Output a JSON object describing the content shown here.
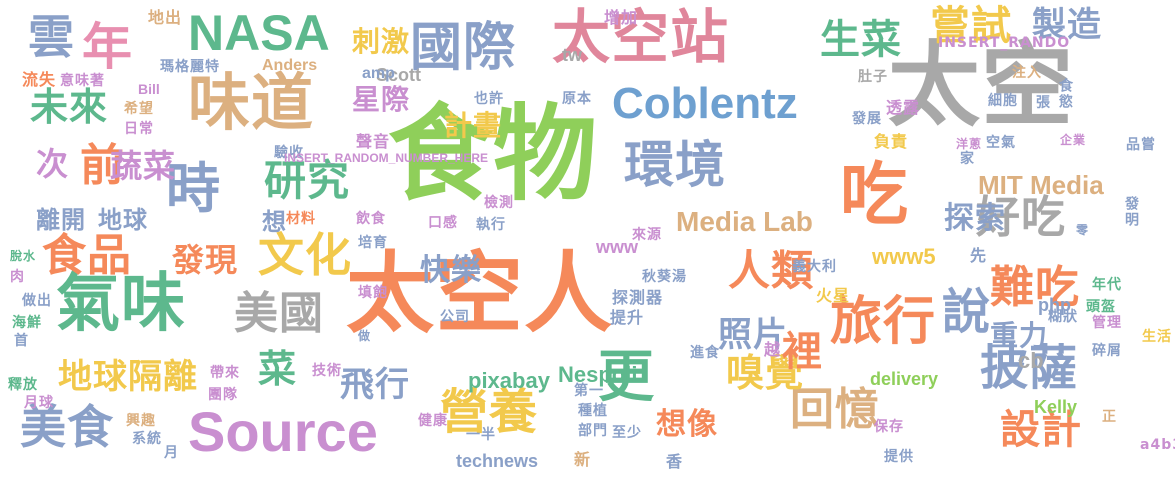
{
  "words": [
    {
      "text": "食物",
      "color": "#8fcf5a"
    },
    {
      "text": "太空",
      "color": "#a8a8a8"
    },
    {
      "text": "太空人",
      "color": "#f5895a"
    },
    {
      "text": "太空站",
      "color": "#e0869b"
    },
    {
      "text": "國際",
      "color": "#8aa0c8"
    },
    {
      "text": "氣味",
      "color": "#5db88d"
    },
    {
      "text": "味道",
      "color": "#dcb080"
    },
    {
      "text": "Source",
      "color": "#c98fd0"
    },
    {
      "text": "NASA",
      "color": "#5db88d"
    },
    {
      "text": "年",
      "color": "#e88fb0"
    },
    {
      "text": "Coblentz",
      "color": "#6ea0d0"
    },
    {
      "text": "吃",
      "color": "#f5895a"
    },
    {
      "text": "旅行",
      "color": "#f5895a"
    },
    {
      "text": "環境",
      "color": "#8aa0c8"
    },
    {
      "text": "時",
      "color": "#8aa0c8"
    },
    {
      "text": "美食",
      "color": "#8aa0c8"
    },
    {
      "text": "更",
      "color": "#5db88d"
    },
    {
      "text": "營養",
      "color": "#f2c94c"
    },
    {
      "text": "披薩",
      "color": "#8aa0c8"
    },
    {
      "text": "說",
      "color": "#8aa0c8"
    },
    {
      "text": "好吃",
      "color": "#a8a8a8"
    },
    {
      "text": "難吃",
      "color": "#f5895a"
    },
    {
      "text": "人類",
      "color": "#f5895a"
    },
    {
      "text": "文化",
      "color": "#f2c94c"
    },
    {
      "text": "研究",
      "color": "#5db88d"
    },
    {
      "text": "美國",
      "color": "#a8a8a8"
    },
    {
      "text": "食品",
      "color": "#f5895a"
    },
    {
      "text": "前",
      "color": "#f5895a"
    },
    {
      "text": "生菜",
      "color": "#5db88d"
    },
    {
      "text": "嘗試",
      "color": "#f2c94c"
    },
    {
      "text": "製造",
      "color": "#8aa0c8"
    },
    {
      "text": "雲",
      "color": "#8aa0c8"
    },
    {
      "text": "未來",
      "color": "#5db88d"
    },
    {
      "text": "次",
      "color": "#c98fd0"
    },
    {
      "text": "蔬菜",
      "color": "#c98fd0"
    },
    {
      "text": "回憶",
      "color": "#dcb080"
    },
    {
      "text": "嗅覺",
      "color": "#f2c94c"
    },
    {
      "text": "設計",
      "color": "#f5895a"
    },
    {
      "text": "飛行",
      "color": "#8aa0c8"
    },
    {
      "text": "地球隔離",
      "color": "#f2c94c"
    },
    {
      "text": "菜",
      "color": "#5db88d"
    },
    {
      "text": "想像",
      "color": "#f5895a"
    },
    {
      "text": "照片",
      "color": "#8aa0c8"
    },
    {
      "text": "發現",
      "color": "#f5895a"
    },
    {
      "text": "裡",
      "color": "#f5895a"
    },
    {
      "text": "MIT Media",
      "color": "#dcb080"
    },
    {
      "text": "Media Lab",
      "color": "#dcb080"
    },
    {
      "text": "探索",
      "color": "#8aa0c8"
    },
    {
      "text": "快樂",
      "color": "#8aa0c8"
    },
    {
      "text": "重力",
      "color": "#8aa0c8"
    },
    {
      "text": "刺激",
      "color": "#f2c94c"
    },
    {
      "text": "星際",
      "color": "#c98fd0"
    },
    {
      "text": "計畫",
      "color": "#f2c94c"
    },
    {
      "text": "離開",
      "color": "#8aa0c8"
    },
    {
      "text": "地球",
      "color": "#8aa0c8"
    },
    {
      "text": "想",
      "color": "#8aa0c8"
    },
    {
      "text": "www5",
      "color": "#f2c94c"
    },
    {
      "text": "www",
      "color": "#c98fd0"
    },
    {
      "text": "pixabay",
      "color": "#5db88d"
    },
    {
      "text": "Nespoli",
      "color": "#5db88d"
    },
    {
      "text": "technews",
      "color": "#8aa0c8"
    },
    {
      "text": "delivery",
      "color": "#8fcf5a"
    },
    {
      "text": "Scott",
      "color": "#a8a8a8"
    },
    {
      "text": "Anders",
      "color": "#dcb080"
    },
    {
      "text": "amp",
      "color": "#8aa0c8"
    },
    {
      "text": "tw",
      "color": "#a8a8a8"
    },
    {
      "text": "php",
      "color": "#8aa0c8"
    },
    {
      "text": "Kelly",
      "color": "#8fcf5a"
    },
    {
      "text": "cb",
      "color": "#a8a8a8"
    },
    {
      "text": "Bill",
      "color": "#c98fd0"
    },
    {
      "text": "瑪格麗特",
      "color": "#8aa0c8"
    },
    {
      "text": "希望",
      "color": "#dcb080"
    },
    {
      "text": "日常",
      "color": "#c98fd0"
    },
    {
      "text": "流失",
      "color": "#f5895a"
    },
    {
      "text": "意味著",
      "color": "#c98fd0"
    },
    {
      "text": "地出",
      "color": "#dcb080"
    },
    {
      "text": "增加",
      "color": "#c98fd0"
    },
    {
      "text": "聲音",
      "color": "#c98fd0"
    },
    {
      "text": "驗收",
      "color": "#8aa0c8"
    },
    {
      "text": "也許",
      "color": "#8aa0c8"
    },
    {
      "text": "原本",
      "color": "#8aa0c8"
    },
    {
      "text": "負責",
      "color": "#f2c94c"
    },
    {
      "text": "透露",
      "color": "#c98fd0"
    },
    {
      "text": "細胞",
      "color": "#8aa0c8"
    },
    {
      "text": "張",
      "color": "#8aa0c8"
    },
    {
      "text": "食慾",
      "color": "#8aa0c8"
    },
    {
      "text": "空氣",
      "color": "#8aa0c8"
    },
    {
      "text": "發展",
      "color": "#8aa0c8"
    },
    {
      "text": "家",
      "color": "#8aa0c8"
    },
    {
      "text": "洋蔥",
      "color": "#c98fd0"
    },
    {
      "text": "品嘗",
      "color": "#8aa0c8"
    },
    {
      "text": "注入",
      "color": "#dcb080"
    },
    {
      "text": "肚子",
      "color": "#a8a8a8"
    },
    {
      "text": "企業",
      "color": "#c98fd0"
    },
    {
      "text": "材料",
      "color": "#f5895a"
    },
    {
      "text": "飲食",
      "color": "#c98fd0"
    },
    {
      "text": "口感",
      "color": "#c98fd0"
    },
    {
      "text": "執行",
      "color": "#8aa0c8"
    },
    {
      "text": "檢測",
      "color": "#c98fd0"
    },
    {
      "text": "培育",
      "color": "#8aa0c8"
    },
    {
      "text": "來源",
      "color": "#c98fd0"
    },
    {
      "text": "義大利",
      "color": "#8aa0c8"
    },
    {
      "text": "火星",
      "color": "#f2c94c"
    },
    {
      "text": "先",
      "color": "#8aa0c8"
    },
    {
      "text": "零",
      "color": "#8aa0c8"
    },
    {
      "text": "發明",
      "color": "#8aa0c8"
    },
    {
      "text": "年代",
      "color": "#5db88d"
    },
    {
      "text": "頭盔",
      "color": "#5db88d"
    },
    {
      "text": "管理",
      "color": "#c98fd0"
    },
    {
      "text": "秋葵湯",
      "color": "#8aa0c8"
    },
    {
      "text": "探測器",
      "color": "#8aa0c8"
    },
    {
      "text": "提升",
      "color": "#8aa0c8"
    },
    {
      "text": "公司",
      "color": "#8aa0c8"
    },
    {
      "text": "填飽",
      "color": "#c98fd0"
    },
    {
      "text": "做",
      "color": "#8aa0c8"
    },
    {
      "text": "肉",
      "color": "#c98fd0"
    },
    {
      "text": "脫水",
      "color": "#5db88d"
    },
    {
      "text": "做出",
      "color": "#8aa0c8"
    },
    {
      "text": "海鮮",
      "color": "#5db88d"
    },
    {
      "text": "首",
      "color": "#8aa0c8"
    },
    {
      "text": "糊狀",
      "color": "#8aa0c8"
    },
    {
      "text": "碎屑",
      "color": "#8aa0c8"
    },
    {
      "text": "生活",
      "color": "#f2c94c"
    },
    {
      "text": "越",
      "color": "#c98fd0"
    },
    {
      "text": "進食",
      "color": "#8aa0c8"
    },
    {
      "text": "技術",
      "color": "#c98fd0"
    },
    {
      "text": "帶來",
      "color": "#c98fd0"
    },
    {
      "text": "團隊",
      "color": "#c98fd0"
    },
    {
      "text": "釋放",
      "color": "#5db88d"
    },
    {
      "text": "月球",
      "color": "#c98fd0"
    },
    {
      "text": "興趣",
      "color": "#dcb080"
    },
    {
      "text": "系統",
      "color": "#8aa0c8"
    },
    {
      "text": "健康",
      "color": "#c98fd0"
    },
    {
      "text": "第一",
      "color": "#8aa0c8"
    },
    {
      "text": "種植",
      "color": "#8aa0c8"
    },
    {
      "text": "部門",
      "color": "#8aa0c8"
    },
    {
      "text": "至少",
      "color": "#8aa0c8"
    },
    {
      "text": "一半",
      "color": "#8aa0c8"
    },
    {
      "text": "新",
      "color": "#dcb080"
    },
    {
      "text": "香",
      "color": "#8aa0c8"
    },
    {
      "text": "保存",
      "color": "#c98fd0"
    },
    {
      "text": "提供",
      "color": "#8aa0c8"
    },
    {
      "text": "正",
      "color": "#dcb080"
    },
    {
      "text": "a4b3f35b",
      "color": "#c98fd0"
    },
    {
      "text": "月",
      "color": "#8aa0c8"
    },
    {
      "text": "INSERT_RANDOM_NUMBER_HERE",
      "color": "#c98fd0"
    },
    {
      "text": "INSERT_RANDO",
      "color": "#c98fd0"
    }
  ]
}
